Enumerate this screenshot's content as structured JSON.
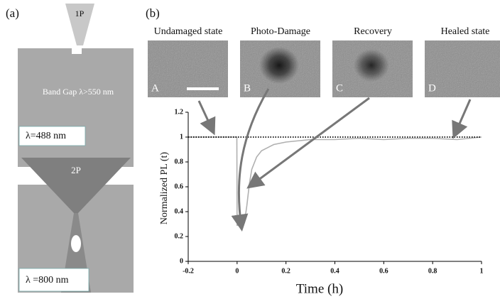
{
  "panel_a": {
    "label": "(a)",
    "top": {
      "beam": "1P",
      "band_gap": "Band Gap λ>550 nm",
      "wavelength": "λ=488 nm"
    },
    "bottom": {
      "beam": "2P",
      "wavelength": "λ =800 nm"
    }
  },
  "panel_b": {
    "label": "(b)",
    "images": [
      {
        "title": "Undamaged state",
        "letter": "A"
      },
      {
        "title": "Photo-Damage",
        "letter": "B"
      },
      {
        "title": "Recovery",
        "letter": "C"
      },
      {
        "title": "Healed state",
        "letter": "D"
      }
    ]
  },
  "chart_data": {
    "type": "line",
    "xlabel": "Time (h)",
    "ylabel": "Normalized PL (t)",
    "x": [
      -0.2,
      -0.1,
      -0.001,
      0,
      0.01,
      0.02,
      0.03,
      0.04,
      0.05,
      0.06,
      0.08,
      0.1,
      0.15,
      0.2,
      0.3,
      0.4,
      0.5,
      0.6,
      0.7,
      0.8,
      0.9,
      1
    ],
    "series": [
      {
        "color": "#b0b0b0",
        "style": "solid",
        "values": [
          1,
          1,
          1,
          0.29,
          0.29,
          0.29,
          0.31,
          0.45,
          0.62,
          0.74,
          0.84,
          0.89,
          0.94,
          0.96,
          0.98,
          0.98,
          0.99,
          0.98,
          0.99,
          0.99,
          0.98,
          1
        ]
      },
      {
        "color": "#000000",
        "style": "dotted",
        "values": [
          1,
          1,
          1,
          1,
          1,
          1,
          1,
          1,
          1,
          1,
          1,
          1,
          1,
          1,
          1,
          1,
          1,
          1,
          1,
          1,
          1,
          1
        ]
      }
    ],
    "xlim": [
      -0.2,
      1
    ],
    "ylim": [
      0,
      1.2
    ],
    "xticks": [
      -0.2,
      0,
      0.2,
      0.4,
      0.6,
      0.8,
      1
    ],
    "yticks": [
      0,
      0.2,
      0.4,
      0.6,
      0.8,
      1,
      1.2
    ]
  }
}
